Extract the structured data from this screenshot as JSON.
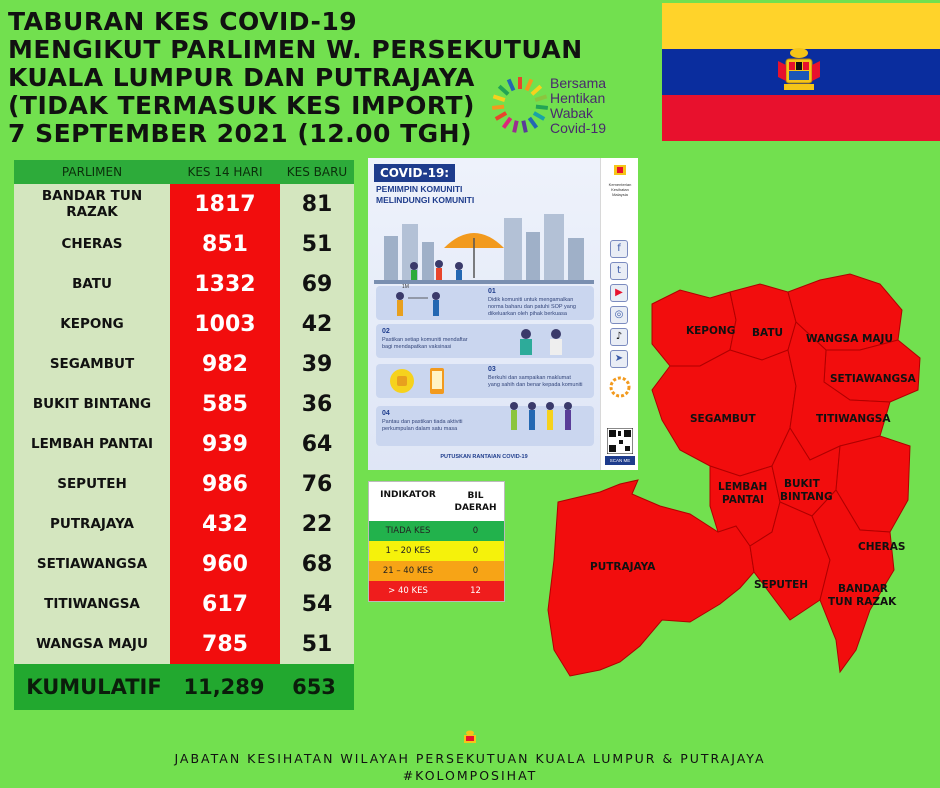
{
  "title": {
    "lines": [
      "TABURAN KES COVID-19",
      "MENGIKUT PARLIMEN W. PERSEKUTUAN",
      "KUALA LUMPUR DAN PUTRAJAYA",
      "(TIDAK TERMASUK KES IMPORT)",
      "7 SEPTEMBER 2021 (12.00 TGH)"
    ]
  },
  "campaign_logo": {
    "lines": [
      "Bersama",
      "Hentikan",
      "Wabak",
      "Covid-19"
    ]
  },
  "table": {
    "headers": [
      "PARLIMEN",
      "KES 14 HARI",
      "KES BARU"
    ],
    "rows": [
      {
        "name": "BANDAR TUN RAZAK",
        "kes14": "1817",
        "baru": "81"
      },
      {
        "name": "CHERAS",
        "kes14": "851",
        "baru": "51"
      },
      {
        "name": "BATU",
        "kes14": "1332",
        "baru": "69"
      },
      {
        "name": "KEPONG",
        "kes14": "1003",
        "baru": "42"
      },
      {
        "name": "SEGAMBUT",
        "kes14": "982",
        "baru": "39"
      },
      {
        "name": "BUKIT BINTANG",
        "kes14": "585",
        "baru": "36"
      },
      {
        "name": "LEMBAH PANTAI",
        "kes14": "939",
        "baru": "64"
      },
      {
        "name": "SEPUTEH",
        "kes14": "986",
        "baru": "76"
      },
      {
        "name": "PUTRAJAYA",
        "kes14": "432",
        "baru": "22"
      },
      {
        "name": "SETIAWANGSA",
        "kes14": "960",
        "baru": "68"
      },
      {
        "name": "TITIWANGSA",
        "kes14": "617",
        "baru": "54"
      },
      {
        "name": "WANGSA MAJU",
        "kes14": "785",
        "baru": "51"
      }
    ],
    "footer": {
      "label": "KUMULATIF",
      "kes14": "11,289",
      "baru": "653"
    }
  },
  "poster": {
    "heading": "COVID-19:",
    "subtitle_1": "PEMIMPIN KOMUNITI",
    "subtitle_2": "MELINDUNGI KOMUNITI",
    "steps": [
      {
        "num": "01",
        "text": "Didik komuniti untuk mengamalkan norma baharu dan patuhi SOP yang dikeluarkan oleh pihak berkuasa"
      },
      {
        "num": "02",
        "text": "Pastikan setiap komuniti mendaftar bagi mendapatkan vaksinasi"
      },
      {
        "num": "03",
        "text": "Berkuhi dan sampaikan maklumat yang sahih dan benar kepada komuniti"
      },
      {
        "num": "04",
        "text": "Pantau dan pastikan tiada aktiviti perkumpulan dalam satu masa"
      }
    ],
    "distance_label": "1M",
    "footer": "PUTUSKAN RANTAIAN COVID-19",
    "side_ministry": "Kementerian Kesihatan Malaysia",
    "side_scan": "SCAN ME",
    "side_icons": [
      "facebook-icon",
      "twitter-icon",
      "youtube-icon",
      "instagram-icon",
      "tiktok-icon",
      "telegram-icon"
    ]
  },
  "indicator": {
    "headers": [
      "INDIKATOR",
      "BIL DAERAH"
    ],
    "rows": [
      {
        "label": "TIADA KES",
        "count": "0",
        "color": "#22b24c",
        "text_color": "#1a1a1a"
      },
      {
        "label": "1 – 20 KES",
        "count": "0",
        "color": "#f5f20b",
        "text_color": "#1a1a1a"
      },
      {
        "label": "21 – 40 KES",
        "count": "0",
        "color": "#f7a416",
        "text_color": "#1a1a1a"
      },
      {
        "label": "> 40 KES",
        "count": "12",
        "color": "#ef1d1d",
        "text_color": "#ffffff"
      }
    ]
  },
  "map": {
    "fill": "#f20d0d",
    "labels": [
      "KEPONG",
      "BATU",
      "WANGSA MAJU",
      "SETIAWANGSA",
      "SEGAMBUT",
      "TITIWANGSA",
      "LEMBAH",
      "PANTAI",
      "BUKIT",
      "BINTANG",
      "CHERAS",
      "PUTRAJAYA",
      "SEPUTEH",
      "BANDAR",
      "TUN RAZAK"
    ]
  },
  "footer": {
    "line1": "JABATAN KESIHATAN WILAYAH PERSEKUTUAN KUALA LUMPUR & PUTRAJAYA",
    "line2": "#KOLOMPOSIHAT"
  },
  "colors": {
    "background": "#72e04f",
    "header_green": "#2dab3a",
    "case_red": "#f20d0d"
  }
}
